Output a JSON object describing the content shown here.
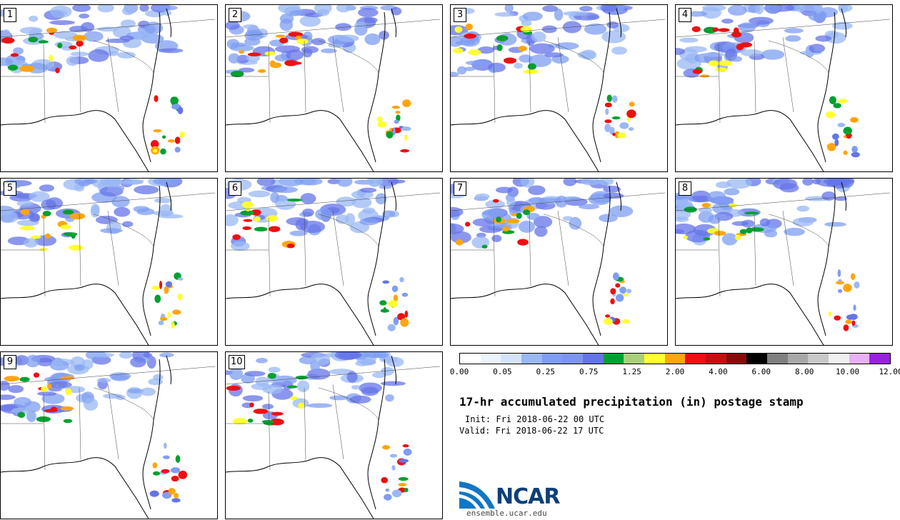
{
  "panels": [
    {
      "label": "1"
    },
    {
      "label": "2"
    },
    {
      "label": "3"
    },
    {
      "label": "4"
    },
    {
      "label": "5"
    },
    {
      "label": "6"
    },
    {
      "label": "7"
    },
    {
      "label": "8"
    },
    {
      "label": "9"
    },
    {
      "label": "10"
    }
  ],
  "colorbar": {
    "colors": [
      "#ffffff",
      "#ebf3ff",
      "#d4e3fc",
      "#9ab8f4",
      "#7f9df2",
      "#7d95f0",
      "#6474e8",
      "#00a030",
      "#a8d07a",
      "#ffff30",
      "#ffa510",
      "#ee1010",
      "#c41010",
      "#8a0a0a",
      "#000000",
      "#808080",
      "#a8a8a8",
      "#c8c8c8",
      "#f0f0f0",
      "#e8b0f8",
      "#9a20e0"
    ],
    "tick_labels": [
      "0.00",
      "0.05",
      "0.25",
      "0.75",
      "1.25",
      "2.00",
      "4.00",
      "6.00",
      "8.00",
      "10.00",
      "12.00"
    ]
  },
  "title": "17-hr accumulated precipitation (in) postage stamp",
  "init_text": "Init: Fri 2018-06-22 00 UTC",
  "valid_text": "Valid: Fri 2018-06-22 17 UTC",
  "logo": {
    "text": "NCAR",
    "url": "ensemble.ucar.edu",
    "color": "#0e3f78"
  }
}
